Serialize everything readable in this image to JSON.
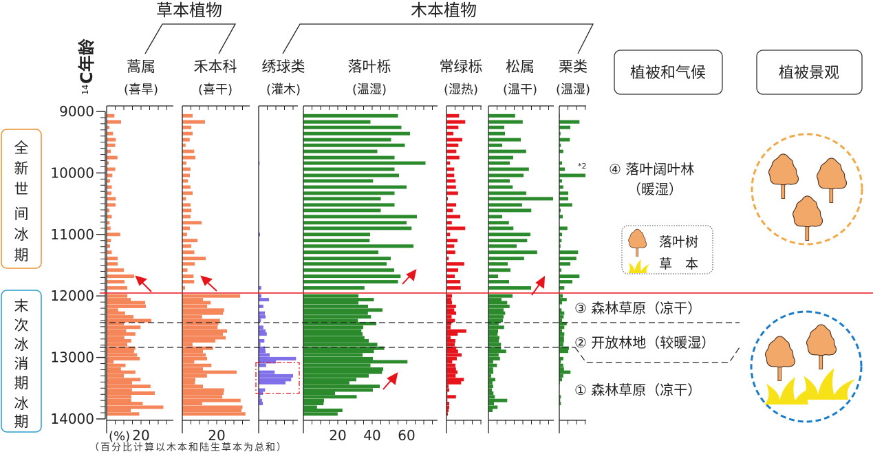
{
  "header": {
    "herb_group": "草本植物",
    "tree_group": "木本植物",
    "y_axis_label_sup": "14",
    "y_axis_label": "C年龄",
    "vegetation_climate_box": "植被和气候",
    "landscape_box": "植被景观"
  },
  "columns": [
    {
      "name": "蒿属",
      "sub": "(喜旱)"
    },
    {
      "name": "禾本科",
      "sub": "(喜干)"
    },
    {
      "name": "绣球类",
      "sub": "(灌木)"
    },
    {
      "name": "落叶栎",
      "sub": "(温湿)"
    },
    {
      "name": "常绿栎",
      "sub": "(湿热)"
    },
    {
      "name": "松属",
      "sub": "(温干)"
    },
    {
      "name": "栗类",
      "sub": "(温湿)"
    }
  ],
  "periods": [
    {
      "line1": "全",
      "line2": "新",
      "line3": "世",
      "line4": "间",
      "line5": "冰",
      "line6": "期",
      "color": "#e8922e"
    },
    {
      "line1": "末",
      "line2": "次",
      "line3": "冰",
      "line4": "消",
      "line5": "期",
      "line6": "冰",
      "line7": "期",
      "color": "#2a9ac8"
    }
  ],
  "zones": {
    "z4_title": "④ 落叶阔叶林",
    "z4_climate": "（暖湿）",
    "z3": "③ 森林草原（凉干）",
    "z2": "② 开放林地（较暖湿）",
    "z1": "① 森林草原（凉干）"
  },
  "legend": {
    "tree": "落叶树",
    "herb": "草　本"
  },
  "axis_notes": {
    "pct_unit": "(%)",
    "note": "（百分比计算以木本和陆生草本为总和）",
    "chestnut_exaggeration": "*2"
  },
  "colors": {
    "herb": "#f5865a",
    "shrub": "#7f6fe8",
    "deciduous_oak": "#2b8a2b",
    "evergreen_oak": "#e8141c",
    "boundary_line": "#e8141c",
    "tree_icon": "#f2a868",
    "grass_icon": "#f7e21a",
    "holocene_circle": "#f0a848",
    "glacial_circle": "#1a7cc8"
  },
  "chart_data": {
    "type": "bar",
    "orientation": "horizontal",
    "ylabel": "14C年龄",
    "ylim": [
      9000,
      14000
    ],
    "y_ticks": [
      "9000",
      "10000",
      "11000",
      "12000",
      "13000",
      "14000"
    ],
    "x_unit": "%",
    "x_tick_labels": {
      "蒿属": [
        "20"
      ],
      "禾本科": [
        "20"
      ],
      "落叶栎": [
        "20",
        "40",
        "60"
      ]
    },
    "boundaries": [
      {
        "age": 11960,
        "style": "solid-red"
      },
      {
        "age": 12430,
        "style": "dashed"
      },
      {
        "age": 12840,
        "style": "dashed"
      }
    ],
    "ages": [
      9070,
      9170,
      9260,
      9360,
      9460,
      9550,
      9650,
      9750,
      9840,
      9940,
      10040,
      10130,
      10230,
      10330,
      10420,
      10520,
      10610,
      10710,
      10810,
      10900,
      11000,
      11100,
      11190,
      11290,
      11390,
      11480,
      11580,
      11680,
      11770,
      11870,
      12000,
      12060,
      12110,
      12170,
      12230,
      12280,
      12340,
      12400,
      12450,
      12510,
      12570,
      12620,
      12680,
      12730,
      12790,
      12850,
      12900,
      12960,
      13020,
      13070,
      13130,
      13190,
      13240,
      13300,
      13360,
      13410,
      13470,
      13530,
      13580,
      13640,
      13700,
      13750,
      13810,
      13860,
      13920
    ],
    "series": [
      {
        "name": "蒿属",
        "values": [
          4.5,
          8.4,
          1.6,
          3.7,
          5.3,
          5,
          2.4,
          6.3,
          1.2,
          5,
          3.3,
          2,
          3,
          2.8,
          5.3,
          5.2,
          1.6,
          3,
          1.7,
          2.3,
          7.9,
          2.5,
          2,
          3,
          6.4,
          6.4,
          10,
          16,
          10.4,
          12,
          12,
          14,
          22.4,
          22.8,
          6.7,
          10.7,
          15.6,
          26,
          10,
          19.7,
          11.3,
          16.7,
          10.3,
          14.3,
          12,
          16.7,
          16,
          17.7,
          19.3,
          4,
          11,
          8.3,
          16.7,
          10,
          19.7,
          14.8,
          25.5,
          14.7,
          28,
          14.3,
          14.3,
          21,
          33,
          14,
          19
        ]
      },
      {
        "name": "禾本科",
        "values": [
          6,
          13.2,
          5.2,
          6,
          4.3,
          1.9,
          6.9,
          7.6,
          2.3,
          4.7,
          4.4,
          3.2,
          4.7,
          6,
          2.1,
          4.8,
          5.3,
          4.8,
          11.2,
          4.4,
          2.7,
          8.8,
          5.2,
          7,
          13.6,
          7.2,
          3,
          6.5,
          6.9,
          1.6,
          33.6,
          12,
          16.5,
          14.4,
          24.3,
          23.7,
          11.5,
          21.9,
          21,
          20.5,
          26,
          23.6,
          25.2,
          19.2,
          5.9,
          17.9,
          12,
          13.6,
          14.4,
          6.9,
          16.9,
          12,
          31.6,
          14.3,
          7.6,
          7.3,
          12,
          24.3,
          24,
          23.2,
          33.9,
          11.5,
          35,
          34.4,
          36.7
        ]
      },
      {
        "name": "绣球类",
        "values": [
          0,
          0,
          0,
          0,
          0,
          0,
          0,
          0,
          0.5,
          0,
          0,
          0,
          0,
          0,
          0,
          0,
          0,
          0,
          0,
          0,
          0.8,
          0,
          0,
          0,
          0,
          0,
          0,
          0,
          0,
          1.5,
          1.6,
          6,
          0,
          2.7,
          0,
          3.6,
          4,
          1.3,
          0,
          2.7,
          4,
          4.7,
          0,
          3.3,
          1,
          3.7,
          4,
          6.4,
          21.7,
          10,
          4.3,
          0,
          9.3,
          20,
          18.9,
          15.6,
          0,
          3.7,
          2.4,
          1,
          2,
          2.4,
          0,
          0.3,
          0
        ]
      },
      {
        "name": "落叶栎",
        "values": [
          55,
          39,
          57,
          62,
          51,
          59,
          43,
          53,
          71,
          53,
          55.6,
          40.5,
          60,
          53,
          45,
          53,
          45,
          66,
          60,
          62.9,
          38.8,
          38.5,
          64,
          43.6,
          50.8,
          48.4,
          52.8,
          56.5,
          55,
          35.5,
          32,
          41,
          32,
          37.6,
          46,
          37.5,
          39.3,
          31.7,
          42.4,
          34.8,
          33.7,
          34.4,
          35.5,
          38,
          43,
          47,
          41,
          34.4,
          40.4,
          60.5,
          39,
          46.4,
          45.7,
          38,
          30.8,
          26.7,
          44.4,
          40.4,
          18.4,
          31,
          12,
          11.7,
          7.9,
          22.7,
          19.9
        ]
      },
      {
        "name": "常绿栎",
        "values": [
          7.3,
          10.9,
          6.9,
          4,
          9.2,
          6.9,
          5.7,
          7.5,
          2.1,
          4.5,
          4.5,
          5.3,
          5.5,
          6.7,
          0.8,
          5.6,
          3.7,
          8,
          3.1,
          10.9,
          2.1,
          6.4,
          4.5,
          5.1,
          1.3,
          10.3,
          6.8,
          4.8,
          8,
          8.3,
          3.2,
          2.9,
          3.2,
          5.5,
          4.5,
          5.6,
          3,
          4.9,
          2.8,
          2.4,
          11.5,
          6.5,
          2.4,
          5.2,
          4.8,
          5.7,
          6.7,
          8.8,
          6,
          3.3,
          5.2,
          5.5,
          6.4,
          5.3,
          10.1,
          8.5,
          1.2,
          1.6,
          0.5,
          5.5,
          0.5,
          1.6,
          1.6,
          1.2,
          0.8
        ]
      },
      {
        "name": "松属",
        "values": [
          15.5,
          19.9,
          9.2,
          9.6,
          18.8,
          8,
          21.9,
          14.4,
          12.4,
          23.5,
          20.4,
          12.4,
          14.1,
          22,
          37.6,
          19.5,
          24.9,
          8,
          11.9,
          14.5,
          24.4,
          22.5,
          16.4,
          28.3,
          20.7,
          11.2,
          12.8,
          5.6,
          12,
          24.8,
          14,
          7.6,
          10.9,
          12.3,
          8.8,
          9.7,
          8.8,
          8.4,
          5.9,
          9.1,
          5.6,
          5.3,
          6.4,
          6,
          7.3,
          7.3,
          10.3,
          5.9,
          6.7,
          2.7,
          4.9,
          2.7,
          2.8,
          1.6,
          4,
          2.3,
          2.7,
          2,
          2.9,
          3.7,
          10.9,
          3.2,
          5.3,
          2.4,
          0
        ]
      },
      {
        "name": "栗类",
        "values": [
          0.3,
          11.7,
          6.4,
          0.7,
          6.1,
          0.9,
          2.3,
          0,
          1.6,
          3.2,
          15.3,
          1.6,
          2.3,
          5.2,
          5.2,
          7.5,
          0.8,
          2,
          0,
          4.7,
          1.6,
          1.3,
          0.7,
          10.9,
          9.9,
          6.4,
          1.2,
          11.7,
          7.6,
          2.9,
          2,
          4.3,
          1.6,
          0,
          1.3,
          2.9,
          2.5,
          1.6,
          4.3,
          2.9,
          1.6,
          2.9,
          2.7,
          2.7,
          2.3,
          5.6,
          5.2,
          0.3,
          2.3,
          0.9,
          2.3,
          2.7,
          6.5,
          2.3,
          1.6,
          0.3,
          0,
          0,
          0,
          0.9,
          0.5,
          0.9,
          0,
          0,
          0
        ]
      }
    ]
  }
}
